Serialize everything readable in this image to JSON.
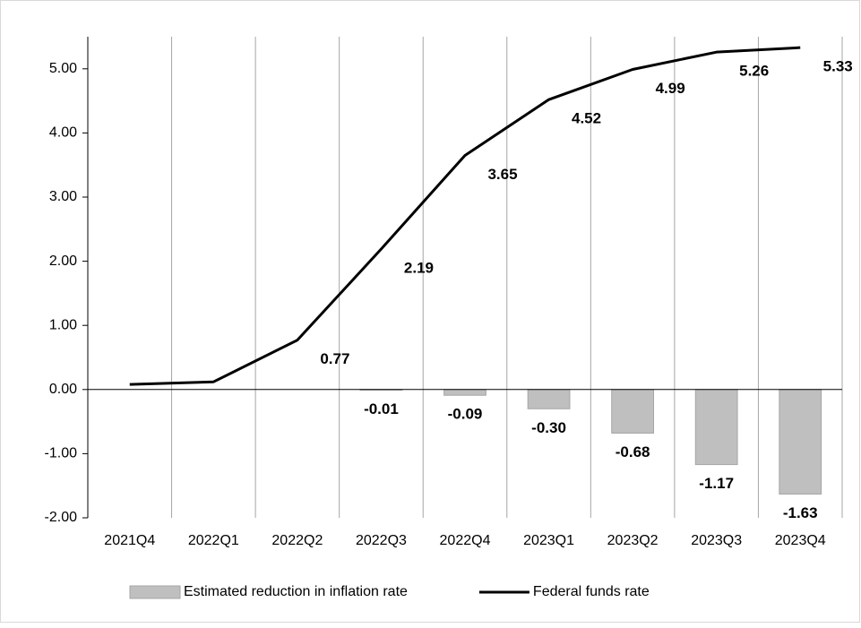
{
  "chart_data": {
    "type": "bar_line",
    "categories": [
      "2021Q4",
      "2022Q1",
      "2022Q2",
      "2022Q3",
      "2022Q4",
      "2023Q1",
      "2023Q2",
      "2023Q3",
      "2023Q4"
    ],
    "series": [
      {
        "name": "Estimated reduction in inflation rate",
        "type": "bar",
        "color": "#bfbfbf",
        "values": [
          0,
          0,
          0,
          -0.01,
          -0.09,
          -0.3,
          -0.68,
          -1.17,
          -1.63
        ],
        "value_labels": [
          null,
          null,
          null,
          "-0.01",
          "-0.09",
          "-0.30",
          "-0.68",
          "-1.17",
          "-1.63"
        ]
      },
      {
        "name": "Federal funds rate",
        "type": "line",
        "color": "#000000",
        "values": [
          0.08,
          0.12,
          0.77,
          2.19,
          3.65,
          4.52,
          4.99,
          5.26,
          5.33
        ],
        "value_labels": [
          null,
          null,
          "0.77",
          "2.19",
          "3.65",
          "4.52",
          "4.99",
          "5.26",
          "5.33"
        ]
      }
    ],
    "ylim": [
      -2,
      5.5
    ],
    "yticks": [
      {
        "value": -2,
        "label": "-2.00"
      },
      {
        "value": -1,
        "label": "-1.00"
      },
      {
        "value": 0,
        "label": "0.00"
      },
      {
        "value": 1,
        "label": "1.00"
      },
      {
        "value": 2,
        "label": "2.00"
      },
      {
        "value": 3,
        "label": "3.00"
      },
      {
        "value": 4,
        "label": "4.00"
      },
      {
        "value": 5,
        "label": "5.00"
      }
    ],
    "grid": "vertical",
    "legend": "bottom"
  }
}
